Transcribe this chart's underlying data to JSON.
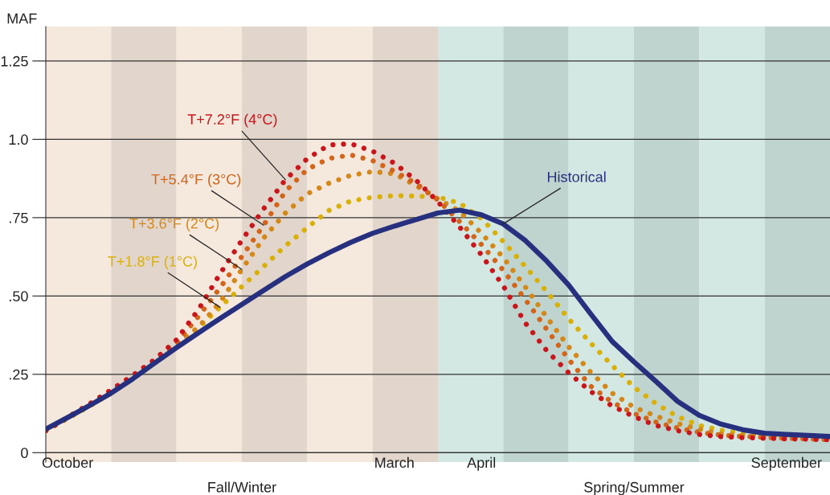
{
  "chart_data": {
    "type": "line",
    "ylabel": "MAF",
    "categories": [
      null,
      "October",
      null,
      null,
      null,
      null,
      null,
      null,
      null,
      null,
      null,
      null,
      null,
      null,
      null,
      null,
      "March",
      null,
      null,
      null,
      "April",
      null,
      null,
      null,
      null,
      null,
      null,
      null,
      null,
      null,
      null,
      null,
      null,
      null,
      "September",
      null,
      null
    ],
    "ylim": [
      -0.03,
      1.36
    ],
    "yticks": [
      {
        "value": 0,
        "label": "0"
      },
      {
        "value": 0.25,
        "label": ".25"
      },
      {
        "value": 0.5,
        "label": ".50"
      },
      {
        "value": 0.75,
        "label": ".75"
      },
      {
        "value": 1.0,
        "label": "1.0"
      },
      {
        "value": 1.25,
        "label": "1.25"
      }
    ],
    "grid": "y",
    "series": [
      {
        "name": "T+1.8°F (1°C)",
        "color": "#d9b00a",
        "line_style": "dotted",
        "values": [
          0.07,
          0.109,
          0.148,
          0.19,
          0.237,
          0.287,
          0.34,
          0.398,
          0.464,
          0.53,
          0.594,
          0.66,
          0.718,
          0.773,
          0.803,
          0.815,
          0.82,
          0.819,
          0.816,
          0.796,
          0.747,
          0.674,
          0.595,
          0.514,
          0.427,
          0.351,
          0.278,
          0.209,
          0.157,
          0.115,
          0.087,
          0.072,
          0.062,
          0.057,
          0.054,
          0.052,
          0.049
        ]
      },
      {
        "name": "T+3.6°F (2°C)",
        "color": "#d4881a",
        "line_style": "dotted",
        "values": [
          0.07,
          0.111,
          0.152,
          0.195,
          0.24,
          0.29,
          0.345,
          0.4,
          0.48,
          0.585,
          0.685,
          0.765,
          0.826,
          0.86,
          0.885,
          0.897,
          0.89,
          0.852,
          0.81,
          0.77,
          0.7,
          0.623,
          0.53,
          0.432,
          0.338,
          0.258,
          0.19,
          0.145,
          0.117,
          0.093,
          0.075,
          0.06,
          0.055,
          0.052,
          0.05,
          0.048,
          0.046
        ]
      },
      {
        "name": "T+5.4°F (3°C)",
        "color": "#d2641c",
        "line_style": "dotted",
        "values": [
          0.07,
          0.113,
          0.155,
          0.2,
          0.245,
          0.292,
          0.35,
          0.434,
          0.526,
          0.626,
          0.726,
          0.834,
          0.904,
          0.939,
          0.95,
          0.932,
          0.898,
          0.859,
          0.806,
          0.737,
          0.664,
          0.582,
          0.49,
          0.393,
          0.298,
          0.213,
          0.161,
          0.125,
          0.098,
          0.079,
          0.065,
          0.056,
          0.052,
          0.049,
          0.046,
          0.044,
          0.041
        ]
      },
      {
        "name": "T+7.2°F (4°C)",
        "color": "#c8161c",
        "line_style": "dotted",
        "values": [
          0.07,
          0.112,
          0.155,
          0.2,
          0.247,
          0.297,
          0.36,
          0.456,
          0.571,
          0.678,
          0.778,
          0.871,
          0.938,
          0.982,
          0.986,
          0.962,
          0.924,
          0.869,
          0.801,
          0.72,
          0.631,
          0.532,
          0.415,
          0.325,
          0.255,
          0.196,
          0.149,
          0.115,
          0.087,
          0.07,
          0.058,
          0.051,
          0.048,
          0.046,
          0.044,
          0.043,
          0.041
        ]
      },
      {
        "name": "Historical",
        "color": "#26307f",
        "line_style": "solid",
        "values": [
          0.075,
          0.112,
          0.15,
          0.19,
          0.236,
          0.286,
          0.335,
          0.382,
          0.428,
          0.473,
          0.518,
          0.562,
          0.602,
          0.638,
          0.671,
          0.7,
          0.723,
          0.744,
          0.765,
          0.774,
          0.759,
          0.73,
          0.678,
          0.611,
          0.535,
          0.444,
          0.355,
          0.29,
          0.228,
          0.164,
          0.119,
          0.091,
          0.073,
          0.062,
          0.058,
          0.055,
          0.052
        ]
      }
    ],
    "annotations": [
      "Fall/Winter",
      "Spring/Summer"
    ]
  }
}
